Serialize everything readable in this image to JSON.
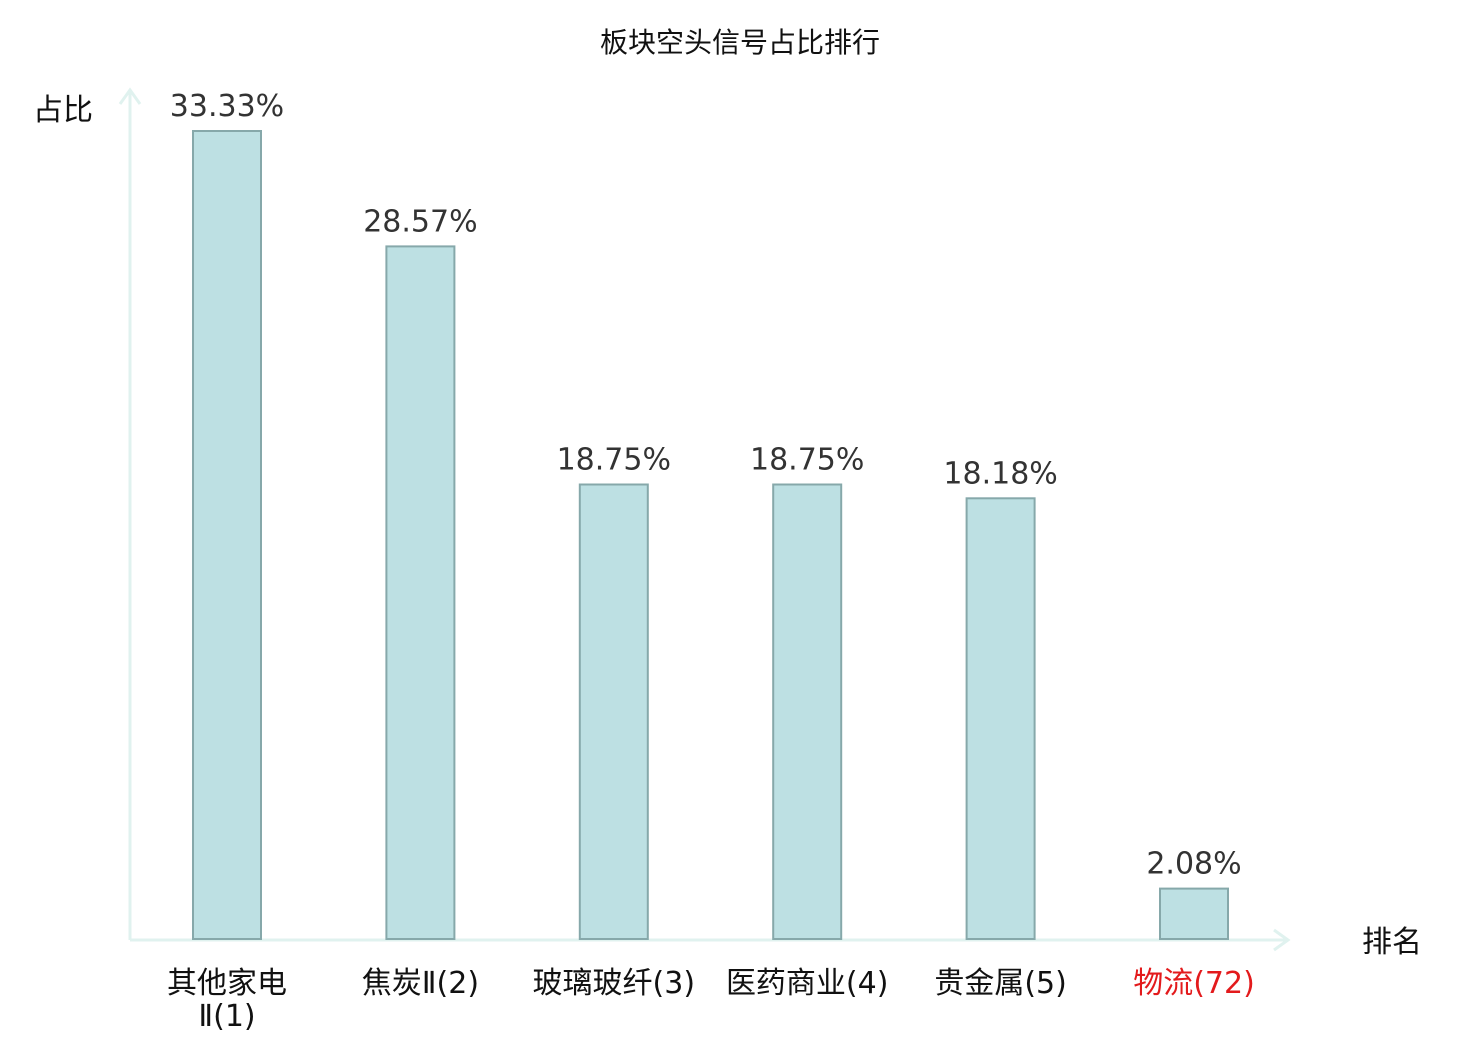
{
  "chart_data": {
    "type": "bar",
    "title": "板块空头信号占比排行",
    "ylabel": "占比",
    "xlabel": "排名",
    "categories": [
      "其他家电Ⅱ(1)",
      "焦炭Ⅱ(2)",
      "玻璃玻纤(3)",
      "医药商业(4)",
      "贵金属(5)",
      "物流(72)"
    ],
    "category_lines": [
      [
        "其他家电",
        "Ⅱ(1)"
      ],
      [
        "焦炭Ⅱ(2)"
      ],
      [
        "玻璃玻纤(3)"
      ],
      [
        "医药商业(4)"
      ],
      [
        "贵金属(5)"
      ],
      [
        "物流(72)"
      ]
    ],
    "values": [
      33.33,
      28.57,
      18.75,
      18.75,
      18.18,
      2.08
    ],
    "value_labels": [
      "33.33%",
      "28.57%",
      "18.75%",
      "18.75%",
      "18.18%",
      "2.08%"
    ],
    "highlight_index": 5,
    "ylim": [
      0,
      33.33
    ],
    "grid": false,
    "colors": {
      "bar_fill": "#bde0e3",
      "bar_stroke": "#86a8aa",
      "axis": "#e0f2ef",
      "highlight_text": "#e31a1c",
      "text": "#111111",
      "value_text": "#333333"
    }
  }
}
